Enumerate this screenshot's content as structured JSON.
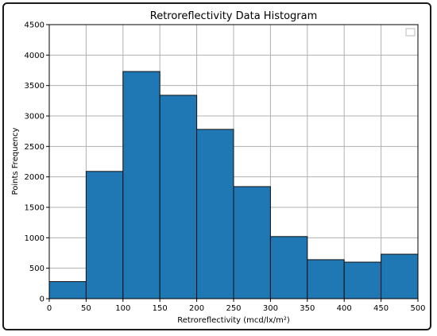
{
  "chart_data": {
    "type": "bar",
    "title": "Retroreflectivity Data Histogram",
    "xlabel": "Retroreflectivity (mcd/lx/m²)",
    "ylabel": "Points Frequency",
    "xlim": [
      0,
      500
    ],
    "ylim": [
      0,
      4500
    ],
    "bin_edges": [
      0,
      50,
      100,
      150,
      200,
      250,
      300,
      350,
      400,
      450,
      500
    ],
    "values": [
      280,
      2090,
      3730,
      3340,
      2780,
      1840,
      1020,
      640,
      600,
      730
    ],
    "x_ticks": [
      "0",
      "50",
      "100",
      "150",
      "200",
      "250",
      "300",
      "350",
      "400",
      "450",
      "500"
    ],
    "y_ticks": [
      "0",
      "500",
      "1000",
      "1500",
      "2000",
      "2500",
      "3000",
      "3500",
      "4000",
      "4500"
    ],
    "grid": true,
    "legend": "top-right (empty)",
    "colors": {
      "bar_fill": "#1f77b4",
      "bar_edge": "#111111",
      "grid": "#b0b0b0"
    }
  }
}
